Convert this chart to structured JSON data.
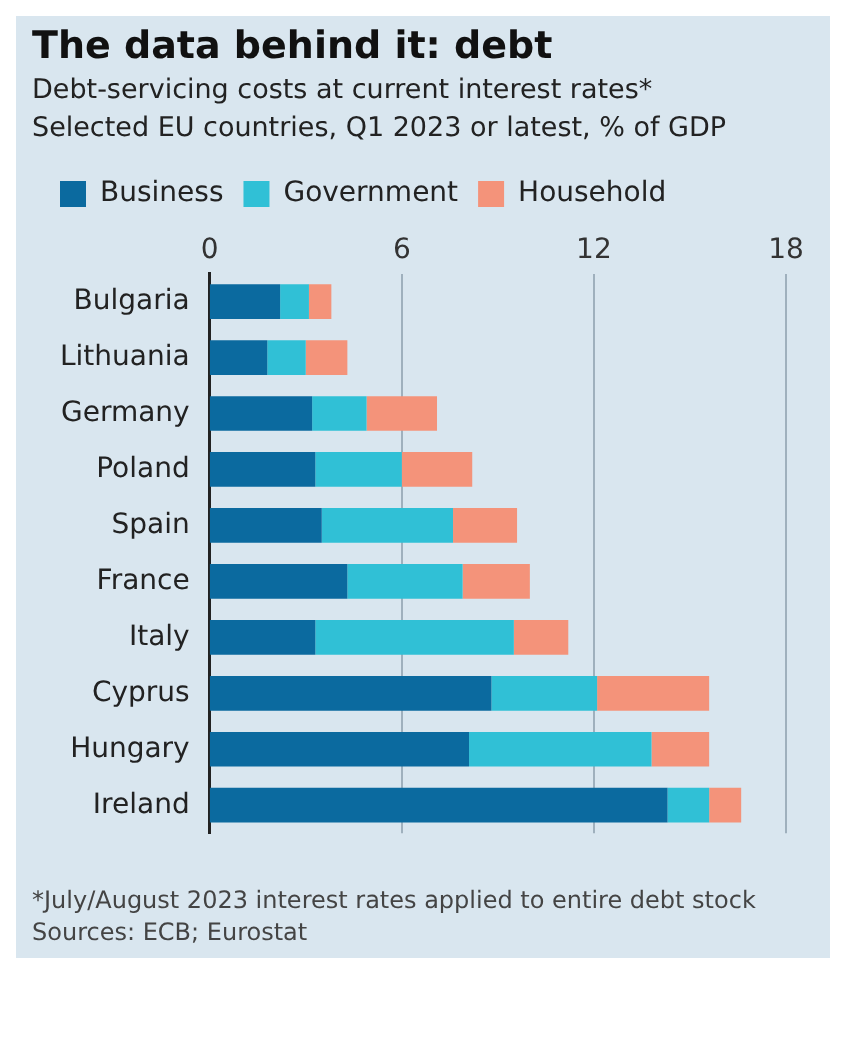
{
  "chart_data": {
    "type": "bar",
    "orientation": "horizontal",
    "stacked": true,
    "title": "The data behind it: debt",
    "subtitle": "Debt-servicing costs at current interest rates*\nSelected EU countries, Q1 2023 or latest, % of GDP",
    "categories": [
      "Bulgaria",
      "Lithuania",
      "Germany",
      "Poland",
      "Spain",
      "France",
      "Italy",
      "Cyprus",
      "Hungary",
      "Ireland"
    ],
    "series": [
      {
        "name": "Business",
        "color": "#0b6a9f",
        "values": [
          2.2,
          1.8,
          3.2,
          3.3,
          3.5,
          4.3,
          3.3,
          8.8,
          8.1,
          14.3
        ]
      },
      {
        "name": "Government",
        "color": "#30c0d6",
        "values": [
          0.9,
          1.2,
          1.7,
          2.7,
          4.1,
          3.6,
          6.2,
          3.3,
          5.7,
          1.3
        ]
      },
      {
        "name": "Household",
        "color": "#f4937a",
        "values": [
          0.7,
          1.3,
          2.2,
          2.2,
          2.0,
          2.1,
          1.7,
          3.5,
          1.8,
          1.0
        ]
      }
    ],
    "xlim": [
      0,
      18
    ],
    "xticks": [
      0,
      6,
      12,
      18
    ],
    "grid": "x",
    "legend": "top left",
    "annotations": [
      "*July/August 2023 interest rates applied to entire debt stock",
      "Sources: ECB; Eurostat"
    ]
  }
}
